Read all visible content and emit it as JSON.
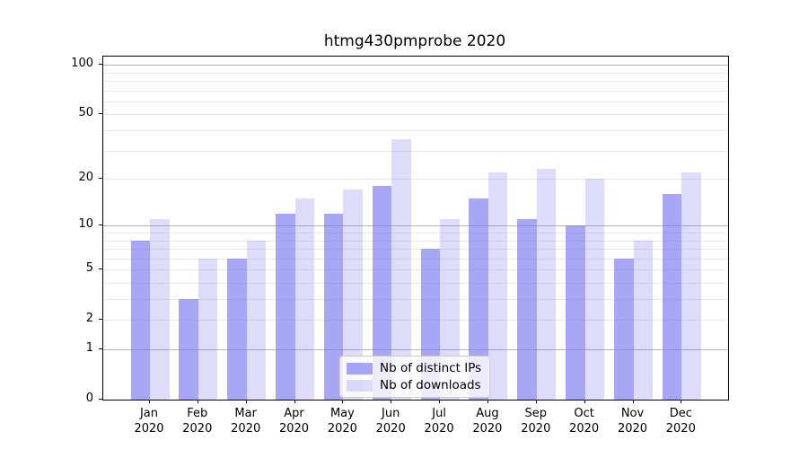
{
  "chart_data": {
    "type": "bar",
    "title": "htmg430pmprobe 2020",
    "categories": [
      "Jan 2020",
      "Feb 2020",
      "Mar 2020",
      "Apr 2020",
      "May 2020",
      "Jun 2020",
      "Jul 2020",
      "Aug 2020",
      "Sep 2020",
      "Oct 2020",
      "Nov 2020",
      "Dec 2020"
    ],
    "series": [
      {
        "name": "Nb of distinct IPs",
        "color": "rgba(120,120,240,0.65)",
        "color_hex_on_white": "#a7a7f4",
        "values": [
          8,
          3,
          6,
          12,
          12,
          18,
          7,
          15,
          11,
          10,
          6,
          16
        ]
      },
      {
        "name": "Nb of downloads",
        "color": "rgba(120,120,240,0.25)",
        "color_hex_on_white": "#ddddfb",
        "values": [
          11,
          6,
          8,
          15,
          17,
          35,
          11,
          22,
          23,
          20,
          8,
          22
        ]
      }
    ],
    "xlabel": "",
    "ylabel": "",
    "y_scale": "symlog (position proportional to log(1+v))",
    "y_ticks": [
      0,
      1,
      2,
      5,
      10,
      20,
      50,
      100
    ],
    "y_major_gridlines": [
      1,
      10,
      100
    ],
    "y_minor_gridlines": [
      2,
      3,
      4,
      5,
      6,
      7,
      8,
      9,
      20,
      30,
      40,
      50,
      60,
      70,
      80,
      90
    ],
    "ylim": [
      0,
      112
    ],
    "legend_position": "lower center (inside plot)",
    "grid": "horizontal",
    "colors": {
      "axis": "#000000",
      "major_grid": "#b3b3b3",
      "minor_grid": "#e8e8e8",
      "text": "#000000",
      "legend_border": "#cccccc",
      "legend_background": "rgba(255,255,255,0.8)"
    }
  }
}
